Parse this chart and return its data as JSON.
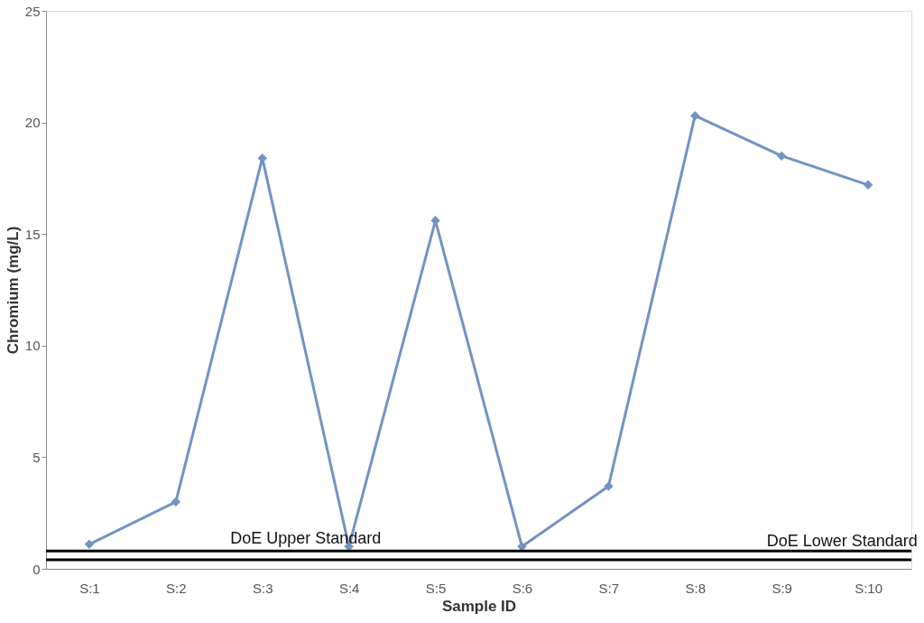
{
  "chart_data": {
    "type": "line",
    "xlabel": "Sample ID",
    "ylabel": "Chromium (mg/L)",
    "categories": [
      "S:1",
      "S:2",
      "S:3",
      "S:4",
      "S:5",
      "S:6",
      "S:7",
      "S:8",
      "S:9",
      "S:10"
    ],
    "series": [
      {
        "color": "#7393c4",
        "values": [
          1.1,
          3.0,
          18.4,
          1.0,
          15.6,
          1.0,
          3.7,
          20.3,
          18.5,
          17.2
        ]
      }
    ],
    "ylim": [
      0,
      25
    ],
    "yticks": [
      0,
      5,
      10,
      15,
      20,
      25
    ],
    "grid": false,
    "legend": false,
    "marker": "diamond",
    "line_style": "solid",
    "ref_lines": [
      {
        "axis": "y",
        "value": 0.8,
        "label": "DoE Upper Standard",
        "color": "#000000"
      },
      {
        "axis": "y",
        "value": 0.4,
        "label": "DoE Lower Standard",
        "color": "#000000"
      }
    ]
  }
}
